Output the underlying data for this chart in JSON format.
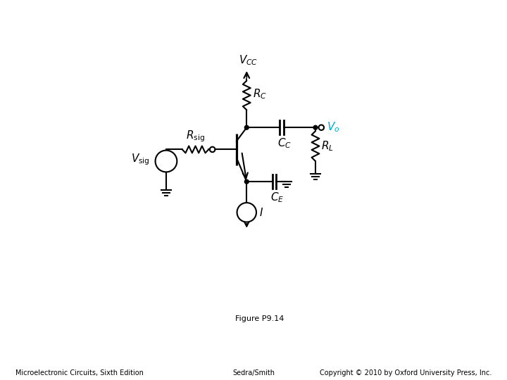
{
  "title": "Figure P9.14",
  "footer_left": "Microelectronic Circuits, Sixth Edition",
  "footer_center": "Sedra/Smith",
  "footer_right": "Copyright © 2010 by Oxford University Press, Inc.",
  "bg_color": "#ffffff",
  "line_color": "#000000",
  "vo_color": "#00aacc",
  "figsize": [
    7.2,
    5.4
  ],
  "dpi": 100
}
